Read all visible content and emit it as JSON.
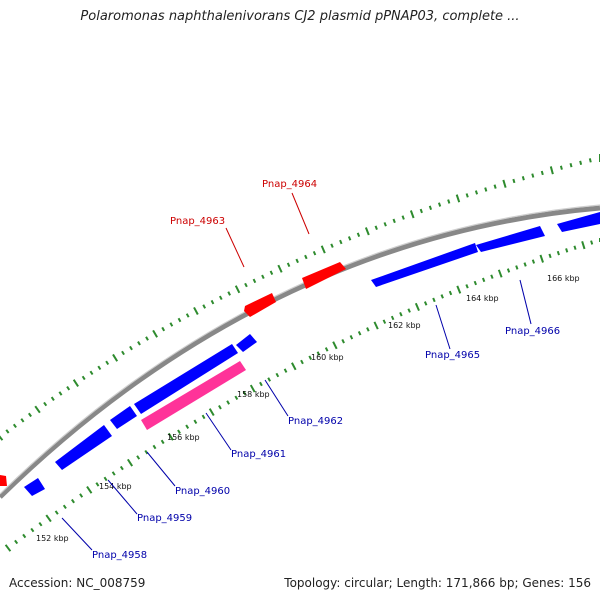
{
  "title": "Polaromonas naphthalenivorans CJ2 plasmid pPNAP03, complete ...",
  "footer": {
    "accession": "Accession: NC_008759",
    "summary": "Topology: circular; Length: 171,866 bp; Genes: 156"
  },
  "colors": {
    "forward_gene": "#ff0000",
    "reverse_gene": "#0000ff",
    "highlight_gene": "#ff3399",
    "backbone": "#888888",
    "ticks": "#2e8b2e",
    "forward_label": "#cc0000",
    "reverse_label": "#0000aa"
  },
  "ticks": [
    {
      "label": "152 kbp"
    },
    {
      "label": "154 kbp"
    },
    {
      "label": "156 kbp"
    },
    {
      "label": "158 kbp"
    },
    {
      "label": "160 kbp"
    },
    {
      "label": "162 kbp"
    },
    {
      "label": "164 kbp"
    },
    {
      "label": "166 kbp"
    }
  ],
  "genes": [
    {
      "name": "Pnap_4958",
      "strand": "reverse"
    },
    {
      "name": "Pnap_4959",
      "strand": "reverse"
    },
    {
      "name": "Pnap_4960",
      "strand": "reverse"
    },
    {
      "name": "Pnap_4961",
      "strand": "reverse",
      "highlight": true
    },
    {
      "name": "Pnap_4962",
      "strand": "reverse"
    },
    {
      "name": "Pnap_4963",
      "strand": "forward"
    },
    {
      "name": "Pnap_4964",
      "strand": "forward"
    },
    {
      "name": "Pnap_4965",
      "strand": "reverse"
    },
    {
      "name": "Pnap_4966",
      "strand": "reverse"
    }
  ]
}
